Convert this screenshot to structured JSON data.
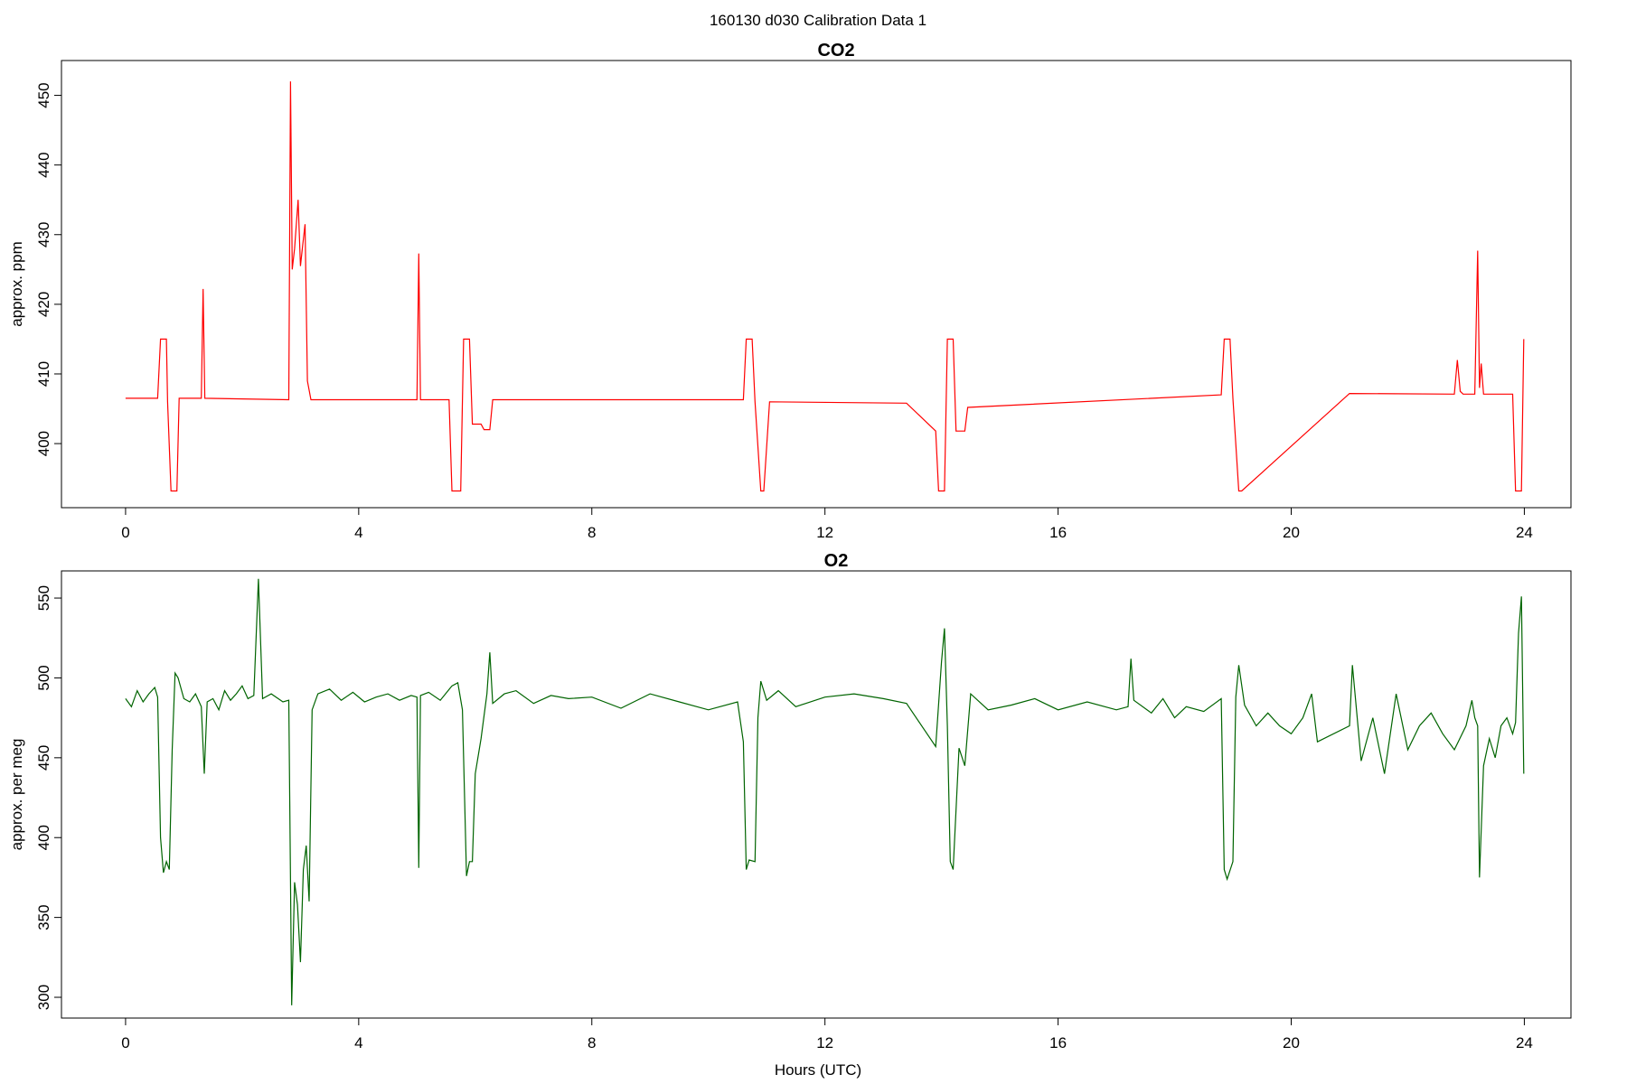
{
  "figure": {
    "supertitle": "160130   d030   Calibration Data 1",
    "xlabel": "Hours (UTC)"
  },
  "chart_data": [
    {
      "type": "line",
      "title": "CO2",
      "ylabel": "approx. ppm",
      "xlabel": "",
      "color": "#ff0000",
      "xlim": [
        -1.1,
        24.8
      ],
      "ylim": [
        390.8,
        455.0
      ],
      "xticks": [
        0,
        4,
        8,
        12,
        16,
        20,
        24
      ],
      "yticks": [
        400,
        410,
        420,
        430,
        440,
        450
      ],
      "grid": false,
      "x": [
        0.0,
        0.55,
        0.6,
        0.7,
        0.72,
        0.78,
        0.88,
        0.92,
        1.3,
        1.33,
        1.36,
        2.8,
        2.83,
        2.86,
        2.9,
        2.96,
        3.0,
        3.04,
        3.08,
        3.12,
        3.18,
        3.25,
        5.0,
        5.03,
        5.06,
        5.55,
        5.6,
        5.75,
        5.8,
        5.9,
        5.95,
        6.1,
        6.15,
        6.25,
        6.3,
        10.6,
        10.65,
        10.75,
        10.8,
        10.9,
        10.95,
        11.05,
        13.4,
        13.9,
        13.95,
        14.05,
        14.1,
        14.2,
        14.25,
        14.4,
        14.45,
        18.8,
        18.85,
        18.95,
        19.0,
        19.1,
        19.15,
        21.0,
        22.8,
        22.85,
        22.9,
        22.95,
        23.0,
        23.15,
        23.2,
        23.23,
        23.26,
        23.3,
        23.4,
        23.8,
        23.85,
        23.95,
        23.99
      ],
      "values": [
        406.5,
        406.5,
        415.0,
        415.0,
        406.0,
        393.2,
        393.2,
        406.5,
        406.5,
        422.2,
        406.5,
        406.3,
        452.0,
        425.0,
        428.0,
        435.0,
        425.5,
        428.5,
        431.5,
        409.0,
        406.3,
        406.3,
        406.3,
        427.3,
        406.3,
        406.3,
        393.2,
        393.2,
        415.0,
        415.0,
        402.8,
        402.8,
        402.0,
        402.0,
        406.3,
        406.3,
        415.0,
        415.0,
        406.0,
        393.2,
        393.2,
        406.0,
        405.8,
        401.8,
        393.2,
        393.2,
        415.0,
        415.0,
        401.8,
        401.8,
        405.2,
        407.0,
        415.0,
        415.0,
        406.5,
        393.2,
        393.2,
        407.2,
        407.1,
        412.0,
        407.5,
        407.1,
        407.1,
        407.1,
        427.7,
        408.0,
        411.5,
        407.1,
        407.1,
        407.1,
        393.2,
        393.2,
        415.0
      ]
    },
    {
      "type": "line",
      "title": "O2",
      "ylabel": "approx. per meg",
      "xlabel": "Hours (UTC)",
      "color": "#006400",
      "xlim": [
        -1.1,
        24.8
      ],
      "ylim": [
        287.0,
        567.0
      ],
      "xticks": [
        0,
        4,
        8,
        12,
        16,
        20,
        24
      ],
      "yticks": [
        300,
        350,
        400,
        450,
        500,
        550
      ],
      "grid": false,
      "x": [
        0.0,
        0.1,
        0.2,
        0.3,
        0.4,
        0.5,
        0.55,
        0.6,
        0.65,
        0.7,
        0.75,
        0.8,
        0.85,
        0.9,
        1.0,
        1.1,
        1.2,
        1.3,
        1.35,
        1.4,
        1.5,
        1.6,
        1.7,
        1.8,
        1.9,
        2.0,
        2.1,
        2.2,
        2.28,
        2.35,
        2.5,
        2.7,
        2.8,
        2.85,
        2.9,
        2.95,
        3.0,
        3.05,
        3.1,
        3.15,
        3.2,
        3.3,
        3.5,
        3.7,
        3.9,
        4.1,
        4.3,
        4.5,
        4.7,
        4.9,
        5.0,
        5.03,
        5.06,
        5.2,
        5.4,
        5.6,
        5.7,
        5.78,
        5.85,
        5.9,
        5.95,
        6.0,
        6.1,
        6.2,
        6.25,
        6.3,
        6.5,
        6.7,
        7.0,
        7.3,
        7.6,
        8.0,
        8.5,
        9.0,
        9.5,
        10.0,
        10.5,
        10.6,
        10.65,
        10.7,
        10.8,
        10.85,
        10.9,
        11.0,
        11.2,
        11.5,
        12.0,
        12.5,
        13.0,
        13.4,
        13.9,
        14.0,
        14.05,
        14.1,
        14.15,
        14.2,
        14.3,
        14.4,
        14.5,
        14.8,
        15.2,
        15.6,
        16.0,
        16.5,
        17.0,
        17.2,
        17.25,
        17.3,
        17.6,
        17.8,
        18.0,
        18.2,
        18.5,
        18.8,
        18.85,
        18.9,
        19.0,
        19.05,
        19.1,
        19.2,
        19.4,
        19.6,
        19.8,
        20.0,
        20.2,
        20.35,
        20.45,
        21.0,
        21.05,
        21.2,
        21.4,
        21.6,
        21.8,
        22.0,
        22.2,
        22.4,
        22.6,
        22.8,
        23.0,
        23.1,
        23.15,
        23.2,
        23.23,
        23.3,
        23.4,
        23.5,
        23.6,
        23.7,
        23.8,
        23.85,
        23.9,
        23.95,
        23.99
      ],
      "values": [
        487,
        482,
        492,
        485,
        490,
        494,
        488,
        400,
        378,
        385,
        380,
        455,
        503,
        500,
        487,
        485,
        490,
        482,
        440,
        485,
        487,
        480,
        492,
        486,
        490,
        495,
        487,
        489,
        562,
        487,
        490,
        485,
        486,
        295,
        372,
        358,
        322,
        380,
        395,
        360,
        480,
        490,
        493,
        486,
        491,
        485,
        488,
        490,
        486,
        489,
        488,
        381,
        489,
        491,
        486,
        495,
        497,
        480,
        376,
        385,
        385,
        440,
        462,
        490,
        516,
        484,
        490,
        492,
        484,
        489,
        487,
        488,
        481,
        490,
        485,
        480,
        485,
        460,
        380,
        386,
        385,
        475,
        498,
        486,
        492,
        482,
        488,
        490,
        487,
        484,
        457,
        510,
        531,
        470,
        385,
        380,
        456,
        445,
        490,
        480,
        483,
        487,
        480,
        485,
        480,
        482,
        512,
        486,
        478,
        487,
        475,
        482,
        479,
        487,
        380,
        374,
        385,
        488,
        508,
        483,
        470,
        478,
        470,
        465,
        475,
        490,
        460,
        470,
        508,
        448,
        475,
        440,
        490,
        455,
        470,
        478,
        465,
        455,
        470,
        486,
        475,
        470,
        375,
        445,
        462,
        450,
        470,
        475,
        465,
        472,
        528,
        551,
        440
      ]
    }
  ]
}
